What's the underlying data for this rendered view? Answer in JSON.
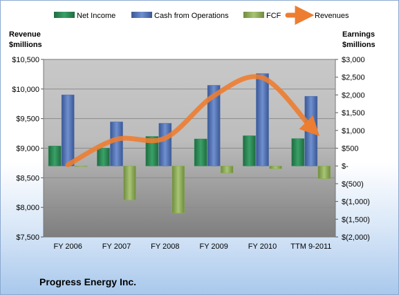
{
  "chart_data": {
    "type": "bar",
    "title": "Progress Energy Inc.",
    "categories": [
      "FY 2006",
      "FY 2007",
      "FY 2008",
      "FY 2009",
      "FY 2010",
      "TTM 9-2011"
    ],
    "left_axis": {
      "label_line1": "Revenue",
      "label_line2": "$millions",
      "ylim": [
        7500,
        10500
      ],
      "ticks": [
        7500,
        8000,
        8500,
        9000,
        9500,
        10000,
        10500
      ],
      "tick_labels": [
        "$7,500",
        "$8,000",
        "$8,500",
        "$9,000",
        "$9,500",
        "$10,000",
        "$10,500"
      ]
    },
    "right_axis": {
      "label_line1": "Earnings",
      "label_line2": "$millions",
      "ylim": [
        -2000,
        3000
      ],
      "ticks": [
        -2000,
        -1500,
        -1000,
        -500,
        0,
        500,
        1000,
        1500,
        2000,
        2500,
        3000
      ],
      "tick_labels": [
        "$(2,000)",
        "$(1,500)",
        "$(1,000)",
        "$(500)",
        "$-",
        "$500",
        "$1,000",
        "$1,500",
        "$2,000",
        "$2,500",
        "$3,000"
      ]
    },
    "series": [
      {
        "name": "Net Income",
        "axis": "right",
        "kind": "bar",
        "color": "#2e8b57",
        "values": [
          560,
          500,
          830,
          760,
          850,
          770
        ]
      },
      {
        "name": "Cash from Operations",
        "axis": "right",
        "kind": "bar",
        "color": "#4f6fb0",
        "values": [
          2000,
          1240,
          1200,
          2270,
          2600,
          1960
        ]
      },
      {
        "name": "FCF",
        "axis": "right",
        "kind": "bar",
        "color": "#8fae5a",
        "values": [
          -10,
          -960,
          -1330,
          -200,
          -80,
          -360
        ]
      },
      {
        "name": "Revenues",
        "axis": "left",
        "kind": "line",
        "color": "#ed7d31",
        "values": [
          8720,
          9150,
          9170,
          9885,
          10190,
          9350
        ]
      }
    ],
    "legend_position": "top",
    "grid": true
  }
}
